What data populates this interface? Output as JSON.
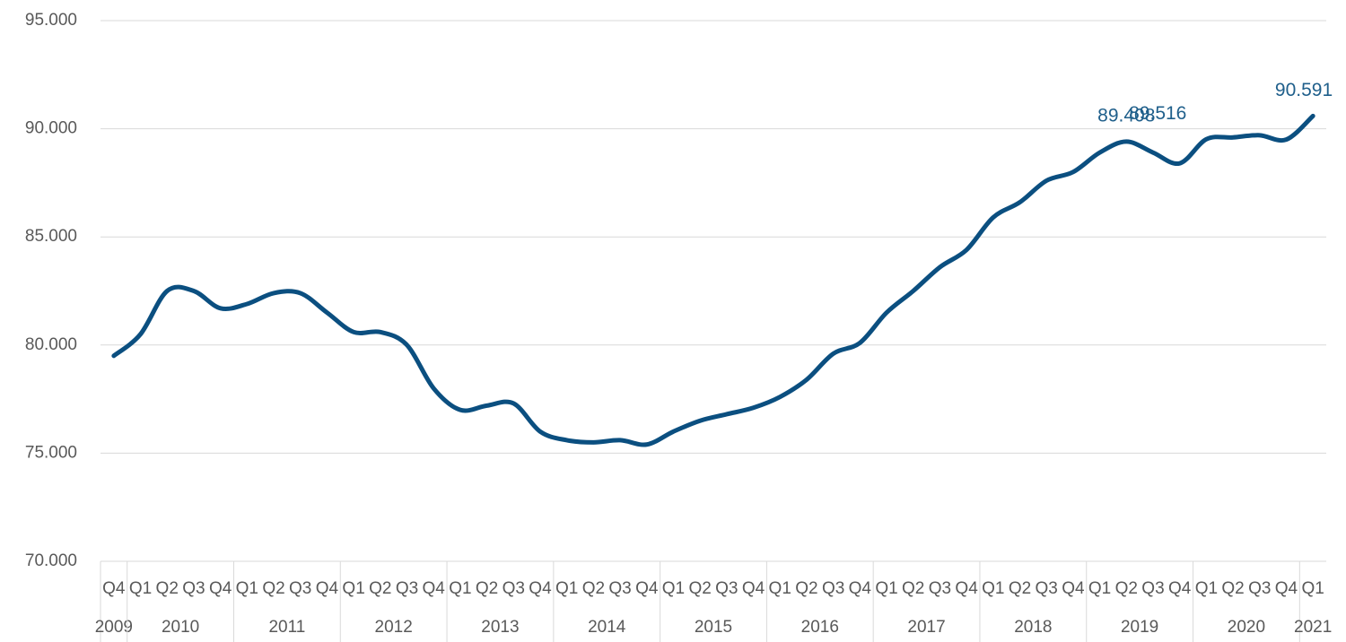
{
  "chart_data": {
    "type": "line",
    "categories": [
      "Q4",
      "Q1",
      "Q2",
      "Q3",
      "Q4",
      "Q1",
      "Q2",
      "Q3",
      "Q4",
      "Q1",
      "Q2",
      "Q3",
      "Q4",
      "Q1",
      "Q2",
      "Q3",
      "Q4",
      "Q1",
      "Q2",
      "Q3",
      "Q4",
      "Q1",
      "Q2",
      "Q3",
      "Q4",
      "Q1",
      "Q2",
      "Q3",
      "Q4",
      "Q1",
      "Q2",
      "Q3",
      "Q4",
      "Q1",
      "Q2",
      "Q3",
      "Q4",
      "Q1",
      "Q2",
      "Q3",
      "Q4",
      "Q1",
      "Q2",
      "Q3",
      "Q4",
      "Q1"
    ],
    "category_groups": [
      {
        "label": "2009",
        "count": 1
      },
      {
        "label": "2010",
        "count": 4
      },
      {
        "label": "2011",
        "count": 4
      },
      {
        "label": "2012",
        "count": 4
      },
      {
        "label": "2013",
        "count": 4
      },
      {
        "label": "2014",
        "count": 4
      },
      {
        "label": "2015",
        "count": 4
      },
      {
        "label": "2016",
        "count": 4
      },
      {
        "label": "2017",
        "count": 4
      },
      {
        "label": "2018",
        "count": 4
      },
      {
        "label": "2019",
        "count": 4
      },
      {
        "label": "2020",
        "count": 4
      },
      {
        "label": "2021",
        "count": 1
      }
    ],
    "series": [
      {
        "color": "#0b4f80",
        "values": [
          79500,
          80500,
          82500,
          82500,
          81700,
          81900,
          82400,
          82400,
          81500,
          80600,
          80600,
          80000,
          78000,
          77000,
          77200,
          77300,
          76000,
          75600,
          75500,
          75600,
          75400,
          76000,
          76500,
          76800,
          77100,
          77600,
          78400,
          79600,
          80100,
          81500,
          82500,
          83600,
          84400,
          85900,
          86600,
          87600,
          88000,
          88900,
          89408,
          88900,
          88400,
          89516,
          89600,
          89700,
          89500,
          90591
        ],
        "value_labels": [
          null,
          null,
          null,
          null,
          null,
          null,
          null,
          null,
          null,
          null,
          null,
          null,
          null,
          null,
          null,
          null,
          null,
          null,
          null,
          null,
          null,
          null,
          null,
          null,
          null,
          null,
          null,
          null,
          null,
          null,
          null,
          null,
          null,
          null,
          null,
          null,
          null,
          null,
          "89.408",
          null,
          null,
          "89.516",
          null,
          null,
          null,
          "90.591"
        ]
      }
    ],
    "ylim": [
      70000,
      95000
    ],
    "yticks": [
      {
        "value": 70000,
        "label": "70.000"
      },
      {
        "value": 75000,
        "label": "75.000"
      },
      {
        "value": 80000,
        "label": "80.000"
      },
      {
        "value": 85000,
        "label": "85.000"
      },
      {
        "value": 90000,
        "label": "90.000"
      },
      {
        "value": 95000,
        "label": "95.000"
      }
    ],
    "grid": true
  }
}
